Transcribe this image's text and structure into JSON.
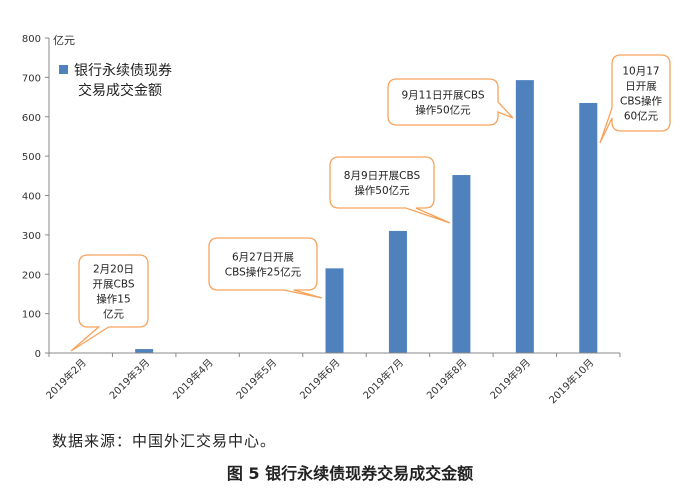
{
  "chart_data": {
    "type": "bar",
    "unit_label": "亿元",
    "categories": [
      "2019年2月",
      "2019年3月",
      "2019年4月",
      "2019年5月",
      "2019年6月",
      "2019年7月",
      "2019年8月",
      "2019年9月",
      "2019年10月"
    ],
    "series": [
      {
        "name_lines": [
          "银行永续债现券",
          "交易成交金额"
        ],
        "values": [
          1,
          10,
          0,
          0,
          215,
          310,
          452,
          693,
          635
        ]
      }
    ],
    "ylim": [
      0,
      800
    ],
    "yticks": [
      0,
      100,
      200,
      300,
      400,
      500,
      600,
      700,
      800
    ],
    "grid": false,
    "legend_position": "top-left",
    "bar_color": "#4f81bd",
    "callout_border_color": "#f7a35c",
    "annotations": [
      {
        "category": "2019年2月",
        "lines": [
          "2月20日",
          "开展CBS",
          "操作15",
          "亿元"
        ]
      },
      {
        "category": "2019年6月",
        "lines": [
          "6月27日开展",
          "CBS操作25亿元"
        ]
      },
      {
        "category": "2019年8月",
        "lines": [
          "8月9日开展CBS",
          "操作50亿元"
        ]
      },
      {
        "category": "2019年9月",
        "lines": [
          "9月11日开展CBS",
          "操作50亿元"
        ]
      },
      {
        "category": "2019年10月",
        "lines": [
          "10月17",
          "日开展",
          "CBS操作",
          "60亿元"
        ]
      }
    ]
  },
  "source_note": "数据来源：中国外汇交易中心。",
  "figure_caption": "图 5 银行永续债现券交易成交金额"
}
